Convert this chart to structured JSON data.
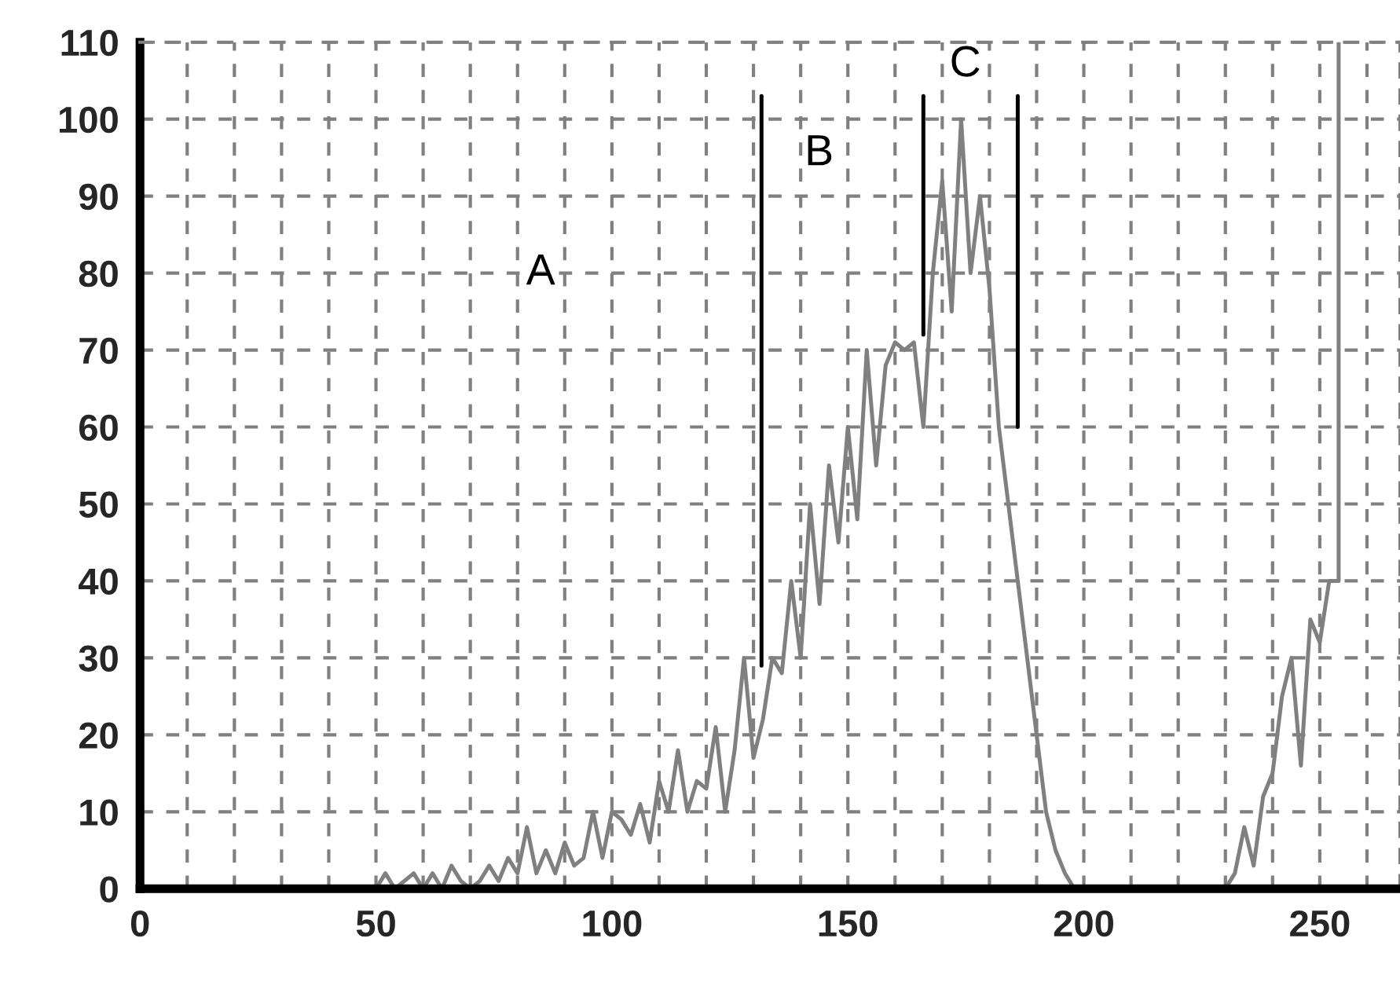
{
  "chart_data": {
    "type": "line",
    "xlim": [
      0,
      267
    ],
    "ylim": [
      0,
      110
    ],
    "xticks": [
      0,
      {
        "value": 10,
        "label": null
      },
      {
        "value": 20,
        "label": null
      },
      {
        "value": 30,
        "label": null
      },
      {
        "value": 40,
        "label": null
      },
      50,
      {
        "value": 60,
        "label": null
      },
      {
        "value": 70,
        "label": null
      },
      {
        "value": 80,
        "label": null
      },
      {
        "value": 90,
        "label": null
      },
      100,
      {
        "value": 110,
        "label": null
      },
      {
        "value": 120,
        "label": null
      },
      {
        "value": 130,
        "label": null
      },
      {
        "value": 140,
        "label": null
      },
      150,
      {
        "value": 160,
        "label": null
      },
      {
        "value": 170,
        "label": null
      },
      {
        "value": 180,
        "label": null
      },
      {
        "value": 190,
        "label": null
      },
      200,
      {
        "value": 210,
        "label": null
      },
      {
        "value": 220,
        "label": null
      },
      {
        "value": 230,
        "label": null
      },
      {
        "value": 240,
        "label": null
      },
      250,
      {
        "value": 260,
        "label": null
      }
    ],
    "yticks": [
      0,
      10,
      20,
      30,
      40,
      50,
      60,
      70,
      80,
      90,
      100,
      110
    ],
    "grid": true,
    "series": [
      {
        "color": "#808080",
        "x": [
          50,
          52,
          54,
          56,
          58,
          60,
          62,
          64,
          66,
          68,
          70,
          72,
          74,
          76,
          78,
          80,
          82,
          84,
          86,
          88,
          90,
          92,
          94,
          96,
          98,
          100,
          102,
          104,
          106,
          108,
          110,
          112,
          114,
          116,
          118,
          120,
          122,
          124,
          126,
          128,
          130,
          132,
          134,
          136,
          138,
          140,
          142,
          144,
          146,
          148,
          150,
          152,
          154,
          156,
          158,
          160,
          162,
          164,
          166,
          168,
          170,
          172,
          174,
          176,
          178,
          180,
          182,
          184,
          186,
          188,
          190,
          192,
          194,
          196,
          198,
          200,
          230,
          232,
          234,
          236,
          238,
          240,
          242,
          244,
          246,
          248,
          250,
          252,
          254,
          254
        ],
        "values": [
          0,
          2,
          0,
          1,
          2,
          0,
          2,
          0,
          3,
          1,
          0,
          1,
          3,
          1,
          4,
          2,
          8,
          2,
          5,
          2,
          6,
          3,
          4,
          10,
          4,
          10,
          9,
          7,
          11,
          6,
          14,
          10,
          18,
          10,
          14,
          13,
          21,
          10,
          18,
          30,
          17,
          22,
          30,
          28,
          40,
          30,
          50,
          37,
          55,
          45,
          60,
          48,
          70,
          55,
          68,
          71,
          70,
          71,
          60,
          80,
          92,
          75,
          100,
          80,
          90,
          78,
          60,
          50,
          40,
          30,
          20,
          10,
          5,
          2,
          0,
          0,
          0,
          2,
          8,
          3,
          12,
          15,
          25,
          30,
          16,
          35,
          32,
          40,
          40,
          110
        ]
      },
      {
        "color": "#000000",
        "x": [
          131.7,
          131.7
        ],
        "values": [
          29,
          103
        ]
      },
      {
        "color": "#000000",
        "x": [
          166,
          166
        ],
        "values": [
          72,
          103
        ]
      },
      {
        "color": "#000000",
        "x": [
          186,
          186
        ],
        "values": [
          60,
          103
        ]
      }
    ],
    "annotations": [
      "A",
      "B",
      "C"
    ]
  }
}
